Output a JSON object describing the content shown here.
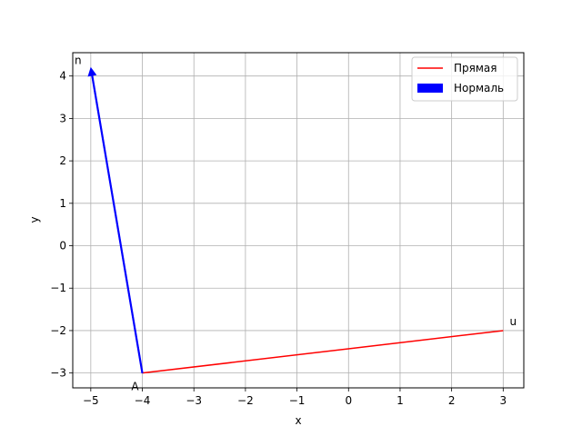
{
  "chart_data": {
    "type": "line",
    "xlabel": "x",
    "ylabel": "y",
    "xlim": [
      -5.35,
      3.4
    ],
    "ylim": [
      -3.35,
      4.55
    ],
    "xticks": [
      -5,
      -4,
      -3,
      -2,
      -1,
      0,
      1,
      2,
      3
    ],
    "yticks": [
      -3,
      -2,
      -1,
      0,
      1,
      2,
      3,
      4
    ],
    "xtick_labels": [
      "−5",
      "−4",
      "−3",
      "−2",
      "−1",
      "0",
      "1",
      "2",
      "3"
    ],
    "ytick_labels": [
      "−3",
      "−2",
      "−1",
      "0",
      "1",
      "2",
      "3",
      "4"
    ],
    "grid": true,
    "legend_position": "top-right",
    "series": [
      {
        "name": "Прямая",
        "kind": "line",
        "color": "#ff0000",
        "points": [
          {
            "x": -4,
            "y": -3
          },
          {
            "x": 3,
            "y": -2
          }
        ]
      },
      {
        "name": "Нормаль",
        "kind": "arrow",
        "color": "#0000ff",
        "from": {
          "x": -4,
          "y": -3
        },
        "to": {
          "x": -5,
          "y": 4.2
        }
      }
    ],
    "annotations": [
      {
        "text": "A",
        "x": -4,
        "y": -3,
        "anchor": "below-left"
      },
      {
        "text": "u",
        "x": 3,
        "y": -2,
        "anchor": "above-right"
      },
      {
        "text": "n",
        "x": -5,
        "y": 4.2,
        "anchor": "above-left"
      }
    ]
  }
}
